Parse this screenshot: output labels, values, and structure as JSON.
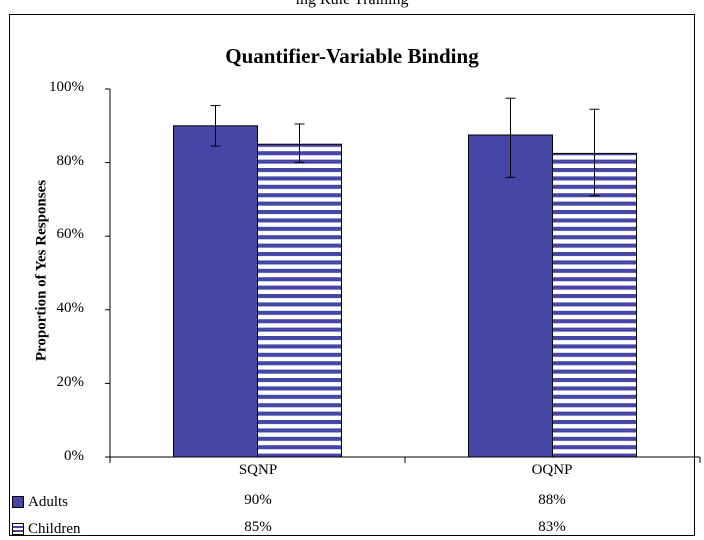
{
  "page_caption": "ing Rule Training",
  "chart_data": {
    "type": "bar",
    "title": "Quantifier-Variable Binding",
    "xlabel": "",
    "ylabel": "Proportion of Yes Responses",
    "ylim": [
      0,
      100
    ],
    "yticks": [
      "0%",
      "20%",
      "40%",
      "60%",
      "80%",
      "100%"
    ],
    "categories": [
      "SQNP",
      "OQNP"
    ],
    "series": [
      {
        "name": "Adults",
        "values": [
          90,
          87.5
        ],
        "error_low": [
          84.5,
          76
        ],
        "error_high": [
          95.5,
          97.5
        ],
        "color": "#4646a6",
        "pattern": "solid",
        "labels": [
          "90%",
          "88%"
        ]
      },
      {
        "name": "Children",
        "values": [
          85,
          82.5
        ],
        "error_low": [
          80,
          71
        ],
        "error_high": [
          90.5,
          94.5
        ],
        "color": "#4646a6",
        "pattern": "horizontal-stripes",
        "labels": [
          "85%",
          "83%"
        ]
      }
    ],
    "grid": false,
    "legend": "data-table-bottom-left"
  }
}
